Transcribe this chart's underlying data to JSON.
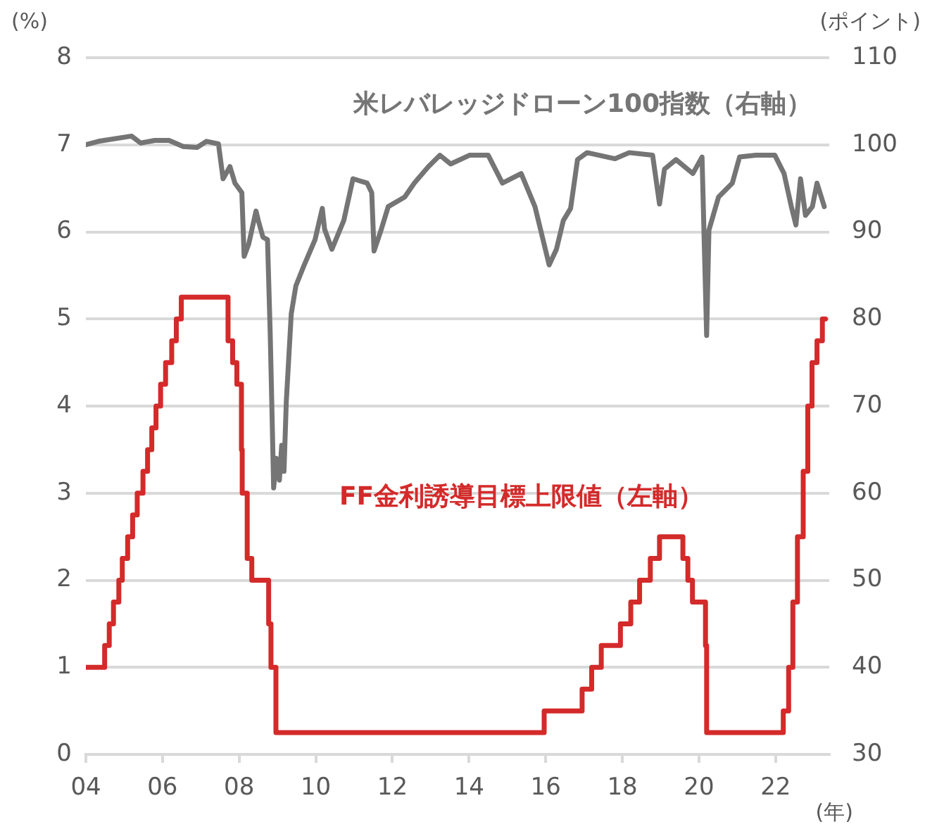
{
  "chart_data": {
    "type": "line",
    "xlabel": "(年)",
    "ylabel": "(%)",
    "y2label": "(ポイント)",
    "xlim": [
      2004,
      2023.4
    ],
    "xticks": [
      {
        "value": 2004,
        "label": "04"
      },
      {
        "value": 2006,
        "label": "06"
      },
      {
        "value": 2008,
        "label": "08"
      },
      {
        "value": 2010,
        "label": "10"
      },
      {
        "value": 2012,
        "label": "12"
      },
      {
        "value": 2014,
        "label": "14"
      },
      {
        "value": 2016,
        "label": "16"
      },
      {
        "value": 2018,
        "label": "18"
      },
      {
        "value": 2020,
        "label": "20"
      },
      {
        "value": 2022,
        "label": "22"
      }
    ],
    "ylim": [
      0,
      8
    ],
    "yticks": [
      0,
      1,
      2,
      3,
      4,
      5,
      6,
      7,
      8
    ],
    "y2lim": [
      30,
      110
    ],
    "y2ticks": [
      30,
      40,
      50,
      60,
      70,
      80,
      90,
      100,
      110
    ],
    "grid": "y",
    "legend": false,
    "marker": "none",
    "line_style": "solid",
    "series": [
      {
        "name": "米レバレッジドローン100指数（右軸）",
        "type": "line",
        "axis": "y2",
        "color": "#757575",
        "x": [
          2004.0,
          2004.33,
          2005.19,
          2005.43,
          2005.8,
          2006.17,
          2006.54,
          2006.9,
          2007.15,
          2007.46,
          2007.58,
          2007.76,
          2007.89,
          2008.07,
          2008.13,
          2008.25,
          2008.44,
          2008.5,
          2008.62,
          2008.74,
          2008.81,
          2008.86,
          2008.9,
          2008.97,
          2009.05,
          2009.11,
          2009.17,
          2009.23,
          2009.36,
          2009.48,
          2009.67,
          2009.98,
          2010.17,
          2010.23,
          2010.42,
          2010.73,
          2010.97,
          2011.34,
          2011.46,
          2011.52,
          2011.71,
          2011.89,
          2012.32,
          2012.57,
          2012.94,
          2013.24,
          2013.52,
          2014.01,
          2014.5,
          2014.87,
          2015.36,
          2015.72,
          2016.09,
          2016.28,
          2016.46,
          2016.65,
          2016.83,
          2017.08,
          2017.81,
          2018.18,
          2018.79,
          2018.97,
          2019.1,
          2019.4,
          2019.84,
          2020.08,
          2020.2,
          2020.26,
          2020.51,
          2020.87,
          2021.06,
          2021.49,
          2021.98,
          2022.22,
          2022.41,
          2022.53,
          2022.65,
          2022.78,
          2022.96,
          2023.08,
          2023.27
        ],
        "values": [
          100.0,
          100.4,
          101.0,
          100.2,
          100.5,
          100.5,
          99.8,
          99.7,
          100.4,
          100.1,
          96.1,
          97.5,
          95.6,
          94.5,
          87.2,
          88.6,
          92.4,
          91.3,
          89.4,
          89.1,
          78.4,
          68.7,
          60.6,
          64.0,
          61.5,
          65.5,
          62.5,
          70.5,
          80.6,
          83.8,
          85.9,
          89.1,
          92.7,
          90.3,
          88.0,
          91.3,
          96.1,
          95.6,
          94.5,
          87.8,
          90.3,
          92.9,
          94.0,
          95.6,
          97.5,
          98.8,
          97.8,
          98.8,
          98.8,
          95.6,
          96.7,
          92.9,
          86.2,
          88.0,
          91.3,
          92.7,
          98.3,
          99.1,
          98.4,
          99.1,
          98.8,
          93.2,
          97.2,
          98.3,
          96.7,
          98.6,
          78.1,
          90.2,
          94.0,
          95.6,
          98.6,
          98.8,
          98.8,
          96.7,
          92.9,
          90.8,
          96.1,
          91.9,
          92.9,
          95.6,
          92.9
        ]
      },
      {
        "name": "FF金利誘導目標上限値（左軸）",
        "type": "step",
        "axis": "y",
        "color": "#d42a2a",
        "x": [
          2004.0,
          2004.49,
          2004.61,
          2004.72,
          2004.86,
          2004.95,
          2005.09,
          2005.22,
          2005.34,
          2005.49,
          2005.61,
          2005.72,
          2005.83,
          2005.95,
          2006.08,
          2006.24,
          2006.36,
          2006.49,
          2007.71,
          2007.83,
          2007.94,
          2008.06,
          2008.08,
          2008.21,
          2008.33,
          2008.77,
          2008.83,
          2008.96,
          2015.96,
          2016.95,
          2017.2,
          2017.45,
          2017.95,
          2018.22,
          2018.45,
          2018.73,
          2018.97,
          2019.58,
          2019.71,
          2019.83,
          2020.17,
          2020.2,
          2022.2,
          2022.34,
          2022.45,
          2022.57,
          2022.72,
          2022.84,
          2022.95,
          2023.08,
          2023.22,
          2023.3
        ],
        "values": [
          1.0,
          1.25,
          1.5,
          1.75,
          2.0,
          2.25,
          2.5,
          2.75,
          3.0,
          3.25,
          3.5,
          3.75,
          4.0,
          4.25,
          4.5,
          4.75,
          5.0,
          5.25,
          4.75,
          4.5,
          4.25,
          3.5,
          3.0,
          2.25,
          2.0,
          1.5,
          1.0,
          0.25,
          0.5,
          0.75,
          1.0,
          1.25,
          1.5,
          1.75,
          2.0,
          2.25,
          2.5,
          2.25,
          2.0,
          1.75,
          1.25,
          0.25,
          0.5,
          1.0,
          1.75,
          2.5,
          3.25,
          4.0,
          4.5,
          4.75,
          5.0,
          5.0
        ]
      }
    ]
  }
}
